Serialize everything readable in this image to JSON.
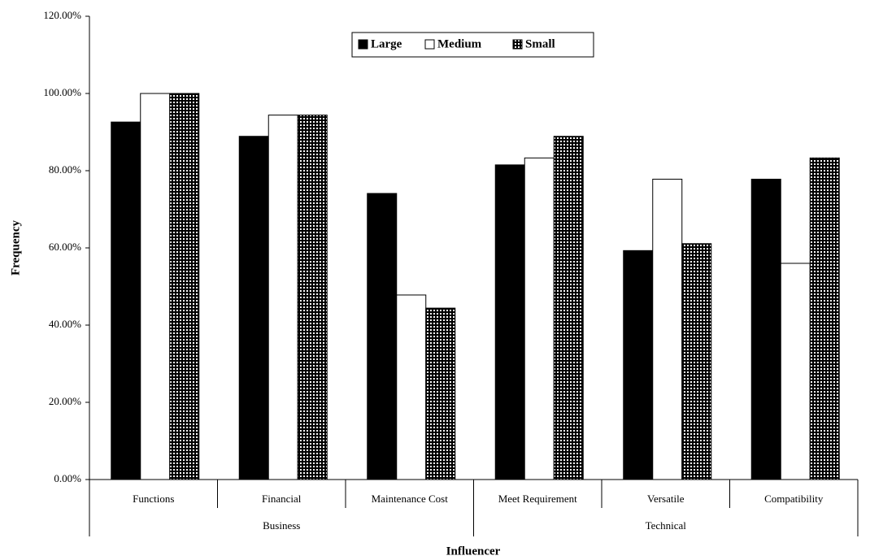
{
  "chart_data": {
    "type": "bar",
    "x_label": "Influencer",
    "y_label": "Frequency",
    "categories": [
      "Functions",
      "Financial",
      "Maintenance Cost",
      "Meet Requirement",
      "Versatile",
      "Compatibility"
    ],
    "groups": [
      "Business",
      "Technical"
    ],
    "series": [
      {
        "name": "Large",
        "color": "#000000",
        "values": [
          92.6,
          88.9,
          74.1,
          81.5,
          59.3,
          77.8
        ]
      },
      {
        "name": "Medium",
        "color": "#ffffff",
        "values": [
          100,
          94.4,
          47.8,
          83.3,
          77.8,
          56
        ]
      },
      {
        "name": "Small",
        "color": "#000000",
        "pattern": "checker",
        "values": [
          100,
          94.4,
          44.4,
          88.9,
          61.1,
          83.3
        ]
      }
    ],
    "ylim": [
      0,
      120
    ],
    "yticks": [
      {
        "value": 0,
        "label": "0.00%"
      },
      {
        "value": 20,
        "label": "20.00%"
      },
      {
        "value": 40,
        "label": "40.00%"
      },
      {
        "value": 60,
        "label": "60.00%"
      },
      {
        "value": 80,
        "label": "80.00%"
      },
      {
        "value": 100,
        "label": "100.00%"
      },
      {
        "value": 120,
        "label": "120.00%"
      }
    ],
    "grid": false,
    "legend": "top"
  }
}
